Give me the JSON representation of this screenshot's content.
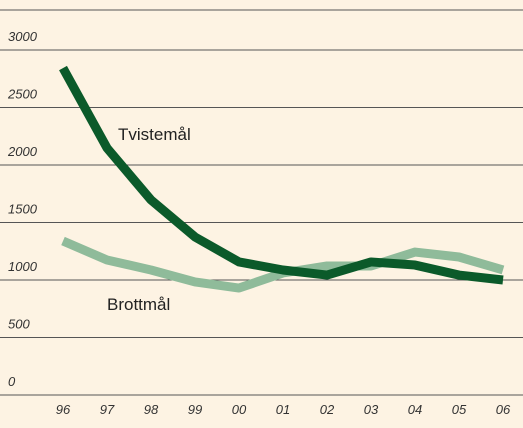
{
  "chart_data": {
    "type": "line",
    "categories": [
      "96",
      "97",
      "98",
      "99",
      "00",
      "01",
      "02",
      "03",
      "04",
      "05",
      "06"
    ],
    "series": [
      {
        "name": "Tvistemål",
        "color": "#0b5a2a",
        "values": [
          2843,
          2148,
          1696,
          1374,
          1157,
          1087,
          1043,
          1157,
          1130,
          1043,
          1000
        ]
      },
      {
        "name": "Brottmål",
        "color": "#8fbb9a",
        "values": [
          1339,
          1174,
          1087,
          983,
          930,
          1061,
          1122,
          1122,
          1243,
          1200,
          1087
        ]
      }
    ],
    "ylim": [
      0,
      3000
    ],
    "yticks": [
      0,
      500,
      1000,
      1500,
      2000,
      2500,
      3000
    ],
    "grid": true
  }
}
